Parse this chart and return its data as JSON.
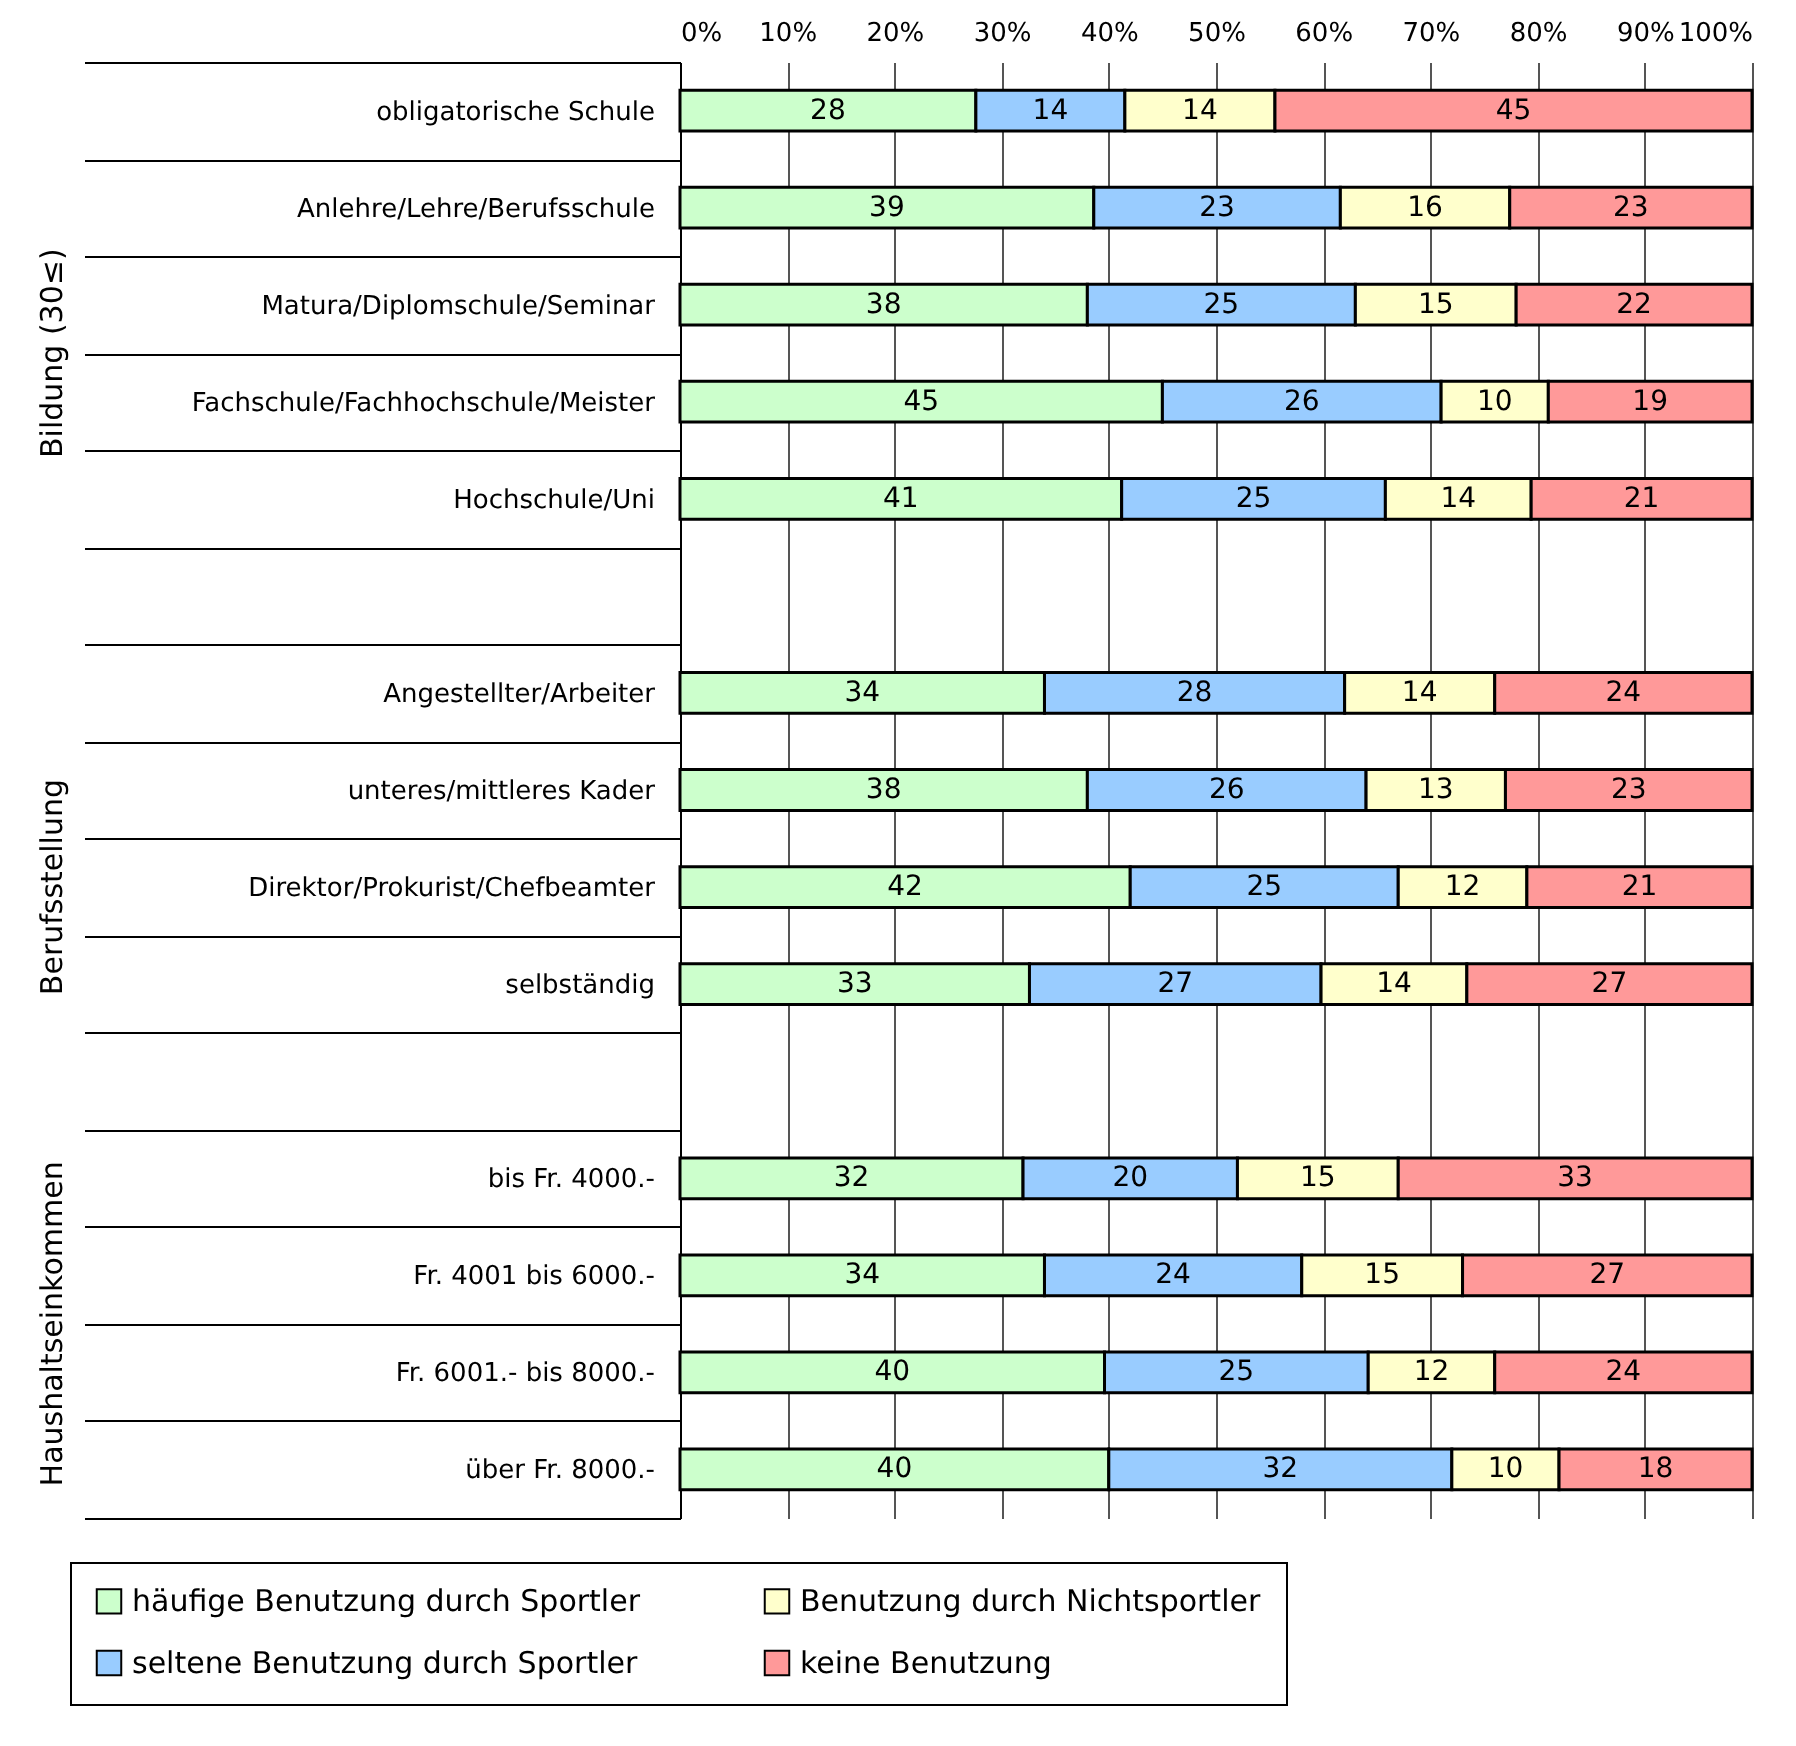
{
  "chart_data": {
    "type": "bar",
    "orientation": "horizontal",
    "stacked": true,
    "legend": "bottom",
    "grid": "x",
    "categories": [
      "obligatorische Schule",
      "Anlehre/Lehre/Berufsschule",
      "Matura/Diplomschule/Seminar",
      "Fachschule/Fachhochschule/Meister",
      "Hochschule/Uni",
      null,
      "Angestellter/Arbeiter",
      "unteres/mittleres Kader",
      "Direktor/Prokurist/Chefbeamter",
      "selbständig",
      null,
      "bis Fr. 4000.-",
      "Fr. 4001 bis 6000.-",
      "Fr. 6001.- bis  8000.-",
      "über Fr. 8000.-"
    ],
    "xlim": [
      0,
      100
    ],
    "xticks": [
      {
        "value": 0,
        "label": "0%"
      },
      {
        "value": 10,
        "label": "10%"
      },
      {
        "value": 20,
        "label": "20%"
      },
      {
        "value": 30,
        "label": "30%"
      },
      {
        "value": 40,
        "label": "40%"
      },
      {
        "value": 50,
        "label": "50%"
      },
      {
        "value": 60,
        "label": "60%"
      },
      {
        "value": 70,
        "label": "70%"
      },
      {
        "value": 80,
        "label": "80%"
      },
      {
        "value": 90,
        "label": "90%"
      },
      {
        "value": 100,
        "label": "100%"
      }
    ],
    "annotations": [
      "Bildung (30≤)",
      "Berufsstellung",
      "Haushaltseinkommen"
    ],
    "series": [
      {
        "name": "häufige Benutzung durch Sportler",
        "color": "#ccffcc",
        "values": [
          27.6,
          38.6,
          38,
          45,
          41.2,
          null,
          34,
          38,
          42,
          32.6,
          null,
          32,
          34,
          39.6,
          40
        ],
        "value_labels": [
          "28",
          "39",
          "38",
          "45",
          "41",
          null,
          "34",
          "38",
          "42",
          "33",
          null,
          "32",
          "34",
          "40",
          "40"
        ]
      },
      {
        "name": "seltene Benutzung durch Sportler",
        "color": "#99ccff",
        "values": [
          13.9,
          23,
          25,
          26,
          24.6,
          null,
          28,
          26,
          25,
          27.2,
          null,
          20,
          24,
          24.6,
          32
        ],
        "value_labels": [
          "14",
          "23",
          "25",
          "26",
          "25",
          null,
          "28",
          "26",
          "25",
          "27",
          null,
          "20",
          "24",
          "25",
          "32"
        ]
      },
      {
        "name": "Benutzung durch Nichtsportler",
        "color": "#ffffcc",
        "values": [
          14,
          15.8,
          15,
          10,
          13.6,
          null,
          14,
          13,
          12,
          13.6,
          null,
          15,
          15,
          11.8,
          10
        ],
        "value_labels": [
          "14",
          "16",
          "15",
          "10",
          "14",
          null,
          "14",
          "13",
          "12",
          "14",
          null,
          "15",
          "15",
          "12",
          "10"
        ]
      },
      {
        "name": "keine Benutzung",
        "color": "#ff9999",
        "values": [
          44.5,
          22.6,
          22,
          19,
          20.6,
          null,
          24,
          23,
          21,
          26.6,
          null,
          33,
          27,
          24,
          18
        ],
        "value_labels": [
          "45",
          "23",
          "22",
          "19",
          "21",
          null,
          "24",
          "23",
          "21",
          "27",
          null,
          "33",
          "27",
          "24",
          "18"
        ]
      }
    ]
  }
}
